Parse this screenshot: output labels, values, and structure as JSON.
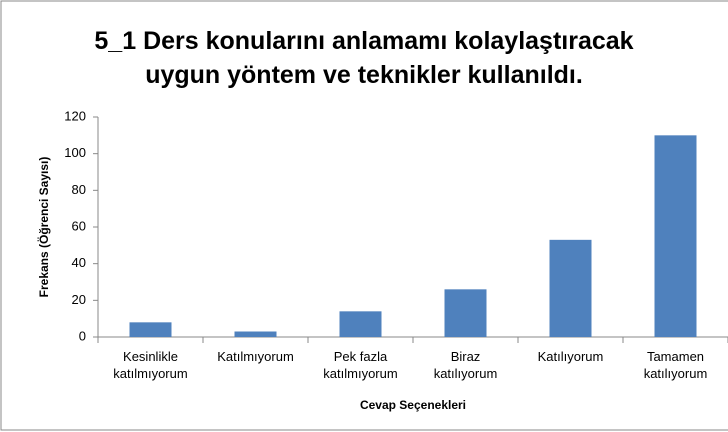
{
  "chart_data": {
    "type": "bar",
    "title": "5_1 Ders konularını anlamamı kolaylaştıracak\nuygun yöntem ve teknikler kullanıldı.",
    "xlabel": "Cevap Seçenekleri",
    "ylabel": "Frekans (Öğrenci Sayısı)",
    "categories": [
      "Kesinlikle katılmıyorum",
      "Katılmıyorum",
      "Pek fazla katılmıyorum",
      "Biraz katılıyorum",
      "Katılıyorum",
      "Tamamen katılıyorum"
    ],
    "values": [
      8,
      3,
      14,
      26,
      53,
      110
    ],
    "color": "#4f81bd",
    "ylim": [
      0,
      120
    ],
    "yticks": [
      0,
      20,
      40,
      60,
      80,
      100,
      120
    ],
    "grid": false
  }
}
